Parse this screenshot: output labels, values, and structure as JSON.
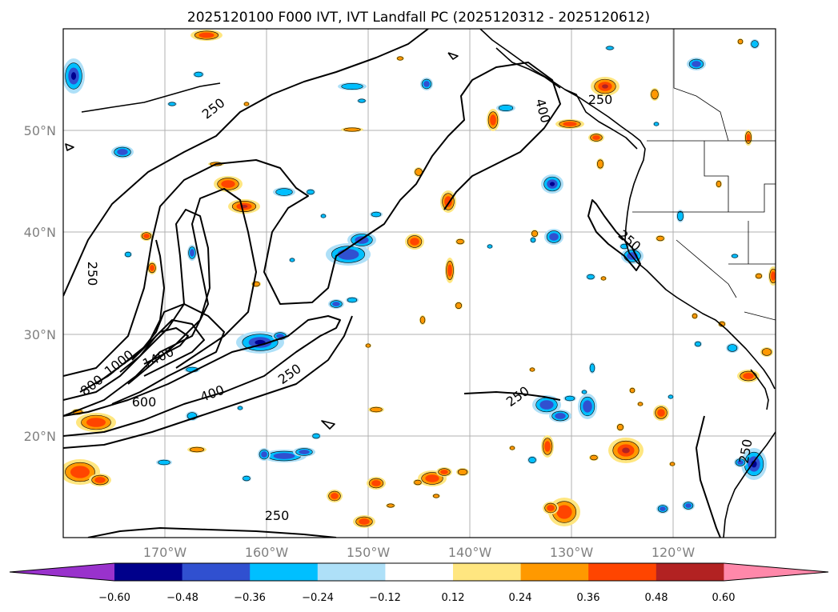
{
  "title": "2025120100 F000 IVT, IVT Landfall PC (2025120312 - 2025120612)",
  "map": {
    "lat_labels": [
      "50°N",
      "40°N",
      "30°N",
      "20°N"
    ],
    "lon_labels": [
      "170°W",
      "160°W",
      "150°W",
      "140°W",
      "130°W",
      "120°W"
    ],
    "ivt_contour_labels": [
      "250",
      "250",
      "250",
      "250",
      "250",
      "250",
      "250",
      "250",
      "400",
      "400",
      "600",
      "800",
      "1000",
      "1400"
    ],
    "blob_colors": {
      "neg_light": "#aee0f8",
      "neg_mid": "#00bfff",
      "neg_strong": "#3050d0",
      "neg_extreme": "#000090",
      "pos_light": "#ffe680",
      "pos_mid": "#ff9900",
      "pos_strong": "#ff4500",
      "pos_extreme": "#b22222"
    }
  },
  "colorbar": {
    "tick_labels": [
      "−0.60",
      "−0.48",
      "−0.36",
      "−0.24",
      "−0.12",
      "0.12",
      "0.24",
      "0.36",
      "0.48",
      "0.60"
    ],
    "colors": [
      "#9932cc",
      "#00008b",
      "#3050d0",
      "#00bfff",
      "#aee0f8",
      "#ffffff",
      "#ffe680",
      "#ff9900",
      "#ff4500",
      "#b22222",
      "#ff88aa"
    ]
  }
}
